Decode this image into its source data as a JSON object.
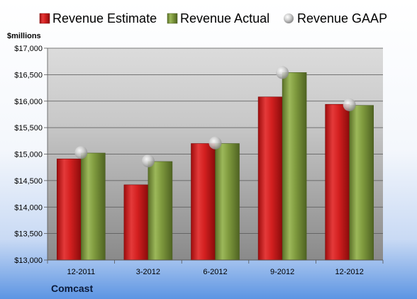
{
  "chart_data": {
    "type": "bar",
    "unit_label": "$millions",
    "company": "Comcast",
    "categories": [
      "12-2011",
      "3-2012",
      "6-2012",
      "9-2012",
      "12-2012"
    ],
    "series": [
      {
        "name": "Revenue Estimate",
        "kind": "bar",
        "color": "#d42020",
        "values": [
          14910,
          14420,
          15200,
          16080,
          15940
        ]
      },
      {
        "name": "Revenue Actual",
        "kind": "bar",
        "color": "#7f9a3e",
        "values": [
          15020,
          14860,
          15200,
          16540,
          15920
        ]
      },
      {
        "name": "Revenue GAAP",
        "kind": "marker",
        "color": "#c8c8c8",
        "values": [
          15030,
          14870,
          15210,
          16540,
          15930
        ]
      }
    ],
    "ylim": [
      13000,
      17000
    ],
    "yticks": [
      13000,
      13500,
      14000,
      14500,
      15000,
      15500,
      16000,
      16500,
      17000
    ],
    "ytick_labels": [
      "$13,000",
      "$13,500",
      "$14,000",
      "$14,500",
      "$15,000",
      "$15,500",
      "$16,000",
      "$16,500",
      "$17,000"
    ],
    "grid": true,
    "legend_position": "top"
  }
}
